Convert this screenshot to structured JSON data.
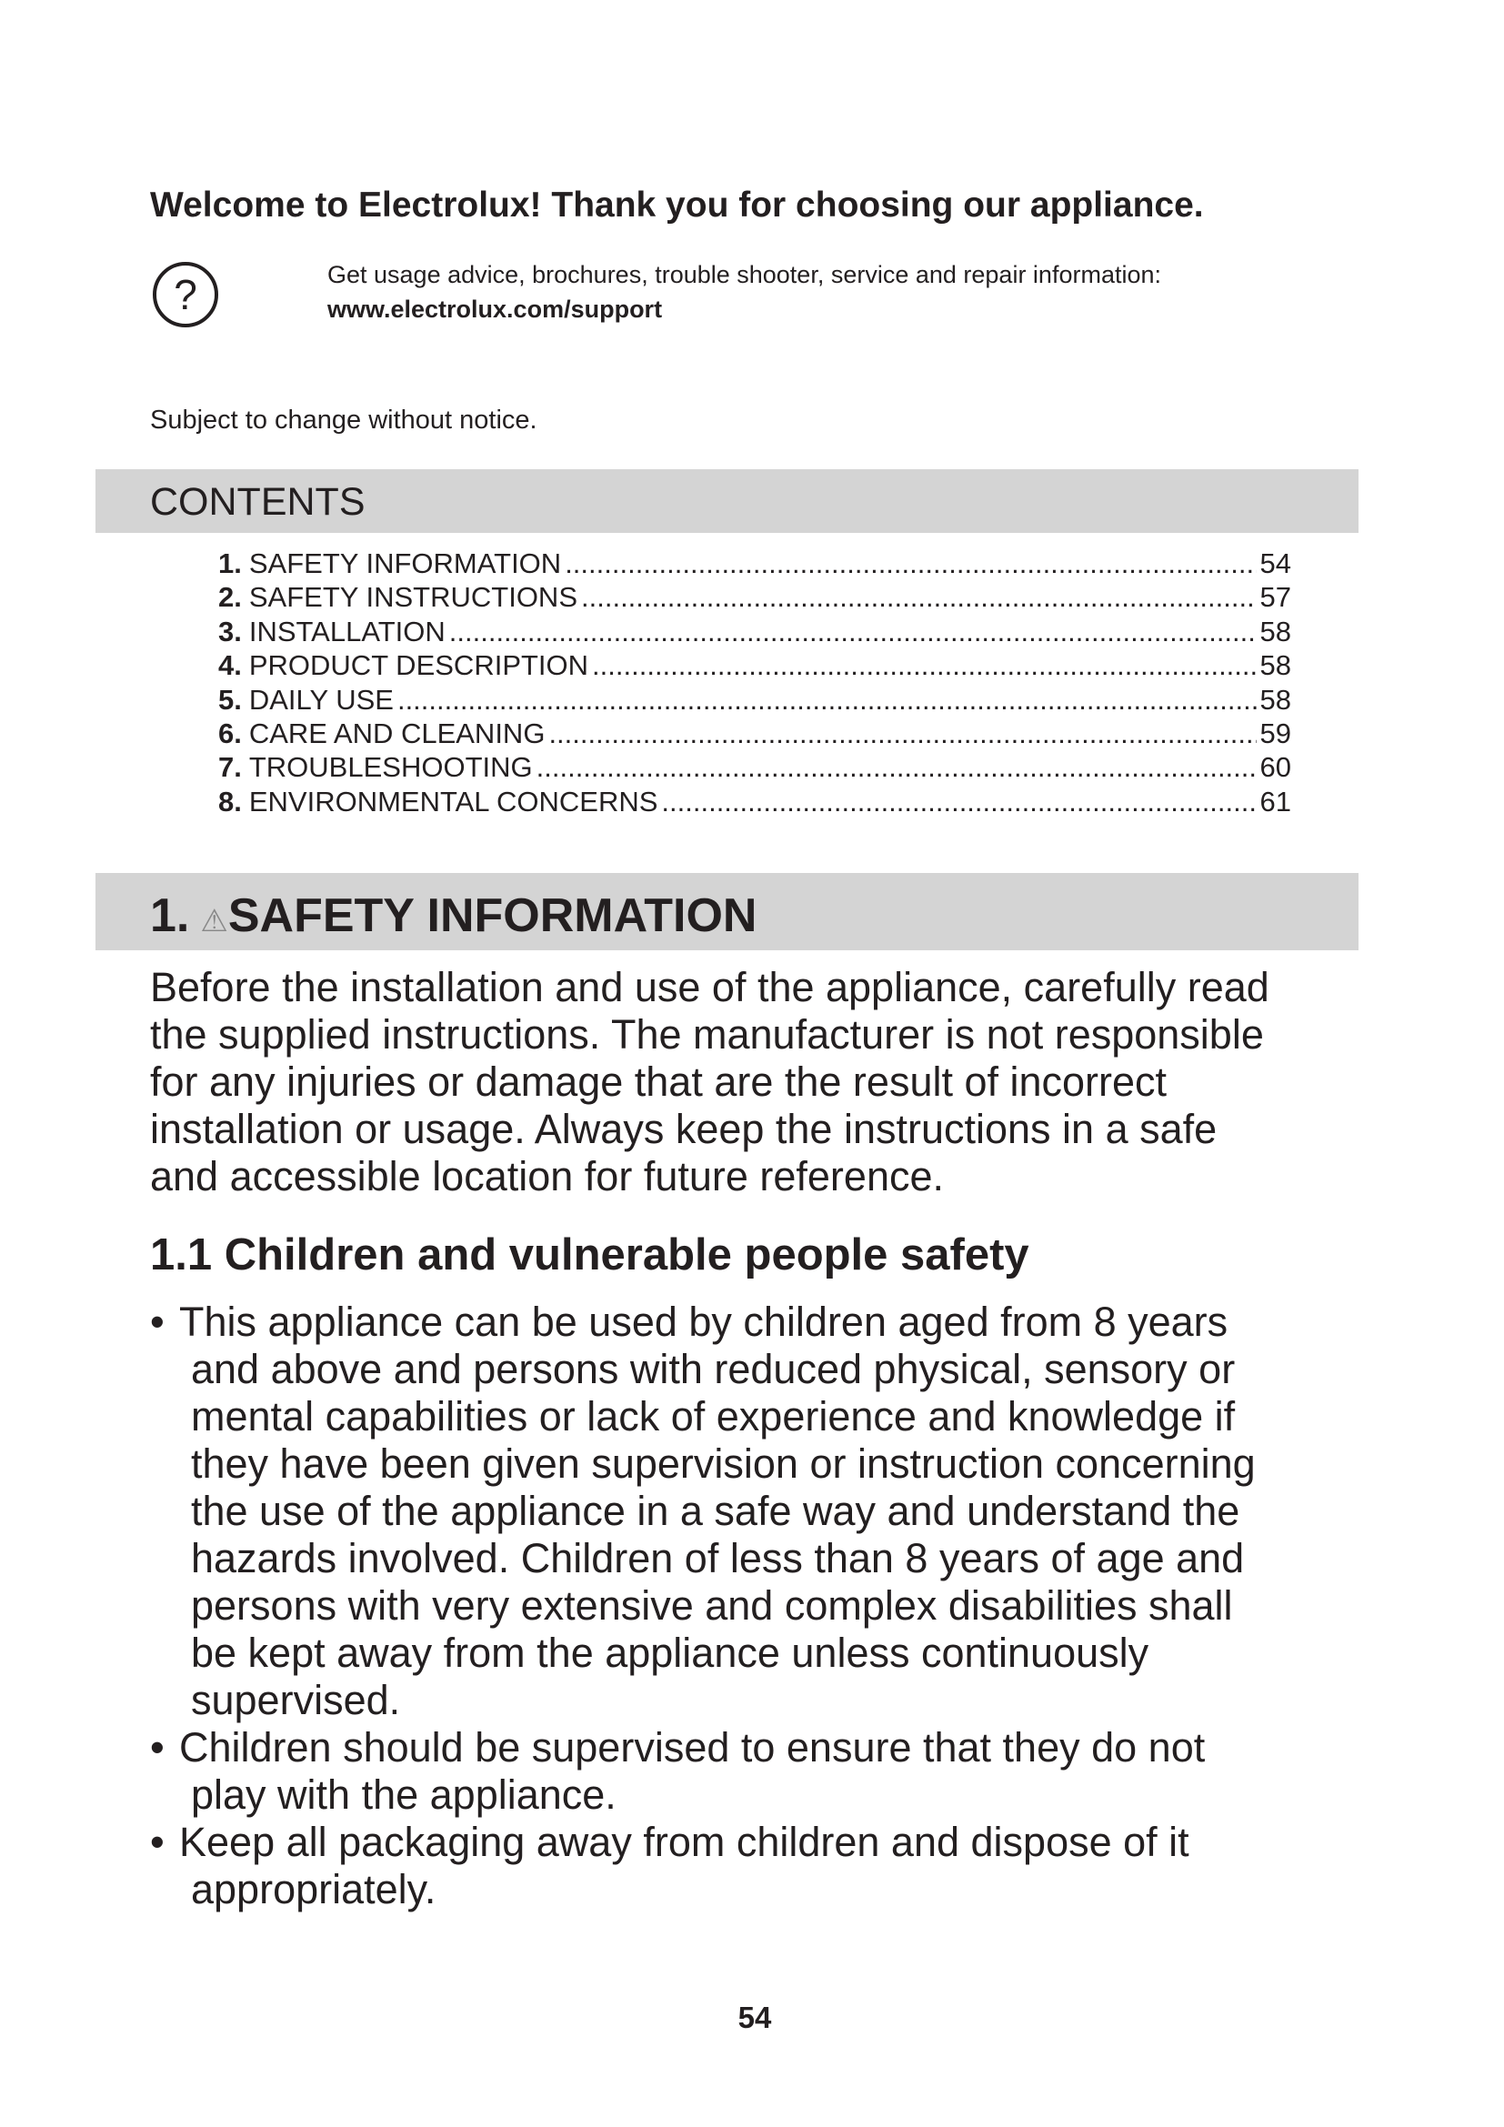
{
  "header": {
    "welcome": "Welcome to Electrolux! Thank you for choosing our appliance.",
    "help_icon": "question-circle-icon",
    "support_text": "Get usage advice, brochures, trouble shooter, service and repair information:",
    "support_url": "www.electrolux.com/support",
    "notice": "Subject to change without notice."
  },
  "contents": {
    "title": "CONTENTS",
    "items": [
      {
        "num": "1.",
        "label": "SAFETY INFORMATION",
        "page": "54"
      },
      {
        "num": "2.",
        "label": "SAFETY INSTRUCTIONS",
        "page": "57"
      },
      {
        "num": "3.",
        "label": "INSTALLATION",
        "page": "58"
      },
      {
        "num": "4.",
        "label": "PRODUCT DESCRIPTION",
        "page": "58"
      },
      {
        "num": "5.",
        "label": "DAILY USE",
        "page": "58"
      },
      {
        "num": "6.",
        "label": "CARE AND CLEANING",
        "page": "59"
      },
      {
        "num": "7.",
        "label": "TROUBLESHOOTING",
        "page": "60"
      },
      {
        "num": "8.",
        "label": "ENVIRONMENTAL CONCERNS",
        "page": "61"
      }
    ]
  },
  "section1": {
    "num": "1.",
    "warning_icon": "warning-triangle-icon",
    "title": "SAFETY INFORMATION",
    "intro_lines": [
      "Before the installation and use of the appliance, carefully read",
      "the supplied instructions. The manufacturer is not responsible",
      "for any injuries or damage that are the result of incorrect",
      "installation or usage. Always keep the instructions in a safe",
      "and accessible location for future reference."
    ],
    "subsection_title": "1.1 Children and vulnerable people safety",
    "bullet_symbol": "•",
    "bullets": [
      [
        "This appliance can be used by children aged from 8 years",
        "and above and persons with reduced physical, sensory or",
        "mental capabilities or lack of experience and knowledge if",
        "they have been given supervision or instruction concerning",
        "the use of the appliance in a safe way and understand the",
        "hazards involved. Children of less than 8 years of age and",
        "persons with very extensive and complex disabilities shall",
        "be kept away from the appliance unless continuously",
        "supervised."
      ],
      [
        "Children should be supervised to ensure that they do not",
        "play with the appliance."
      ],
      [
        "Keep all packaging away from children and dispose of it",
        "appropriately."
      ]
    ]
  },
  "footer": {
    "page_number": "54"
  }
}
